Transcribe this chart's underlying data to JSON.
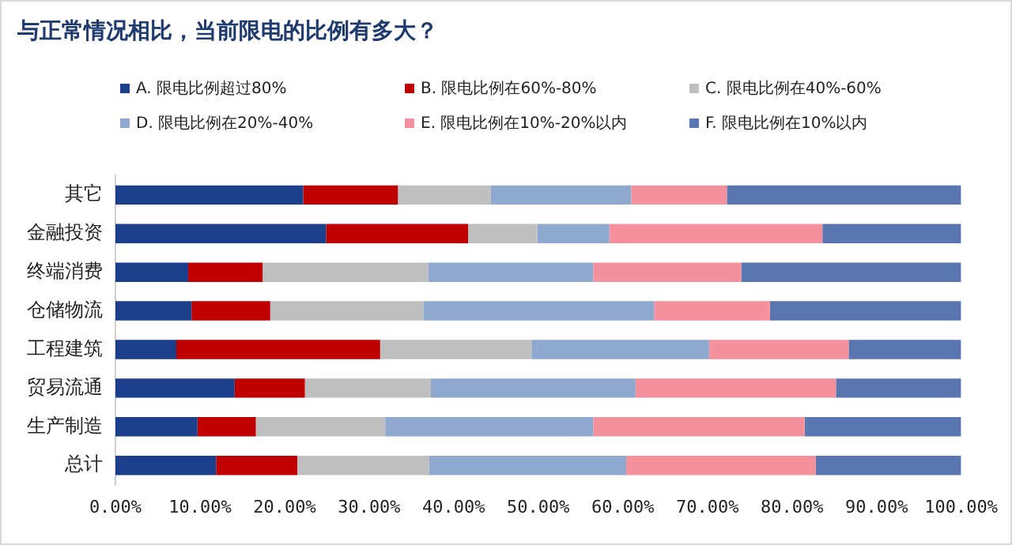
{
  "chart_data": {
    "type": "bar",
    "orientation": "horizontal",
    "stacked": true,
    "title": "与正常情况相比，当前限电的比例有多大？",
    "categories": [
      "其它",
      "金融投资",
      "终端消费",
      "仓储物流",
      "工程建筑",
      "贸易流通",
      "生产制造",
      "总计"
    ],
    "series": [
      {
        "name": "A. 限电比例超过80%",
        "color": "#1b3f8b",
        "values": [
          22.2,
          24.9,
          8.6,
          9.0,
          7.2,
          14.1,
          9.7,
          11.9
        ]
      },
      {
        "name": "B. 限电比例在60%-80%",
        "color": "#c00000",
        "values": [
          11.2,
          16.8,
          8.8,
          9.3,
          24.1,
          8.3,
          6.9,
          9.6
        ]
      },
      {
        "name": "C. 限电比例在40%-60%",
        "color": "#bfbfbf",
        "values": [
          11.0,
          8.2,
          19.6,
          18.1,
          17.9,
          14.9,
          15.3,
          15.6
        ]
      },
      {
        "name": "D. 限电比例在20%-40%",
        "color": "#8fa8d0",
        "values": [
          16.6,
          8.5,
          19.5,
          27.3,
          21.0,
          24.2,
          24.6,
          23.3
        ]
      },
      {
        "name": "E. 限电比例在10%-20%以内",
        "color": "#f4919c",
        "values": [
          11.3,
          25.2,
          17.5,
          13.7,
          16.5,
          23.7,
          25.0,
          22.4
        ]
      },
      {
        "name": "F. 限电比例在10%以内",
        "color": "#5a76b0",
        "values": [
          27.7,
          16.4,
          26.0,
          22.6,
          13.3,
          14.8,
          18.5,
          17.2
        ]
      }
    ],
    "xlim": [
      0,
      100
    ],
    "xticks": [
      {
        "value": 0,
        "label": "0.00%"
      },
      {
        "value": 10,
        "label": "10.00%"
      },
      {
        "value": 20,
        "label": "20.00%"
      },
      {
        "value": 30,
        "label": "30.00%"
      },
      {
        "value": 40,
        "label": "40.00%"
      },
      {
        "value": 50,
        "label": "50.00%"
      },
      {
        "value": 60,
        "label": "60.00%"
      },
      {
        "value": 70,
        "label": "70.00%"
      },
      {
        "value": 80,
        "label": "80.00%"
      },
      {
        "value": 90,
        "label": "90.00%"
      },
      {
        "value": 100,
        "label": "100.00%"
      }
    ],
    "grid": false,
    "legend": "top"
  }
}
